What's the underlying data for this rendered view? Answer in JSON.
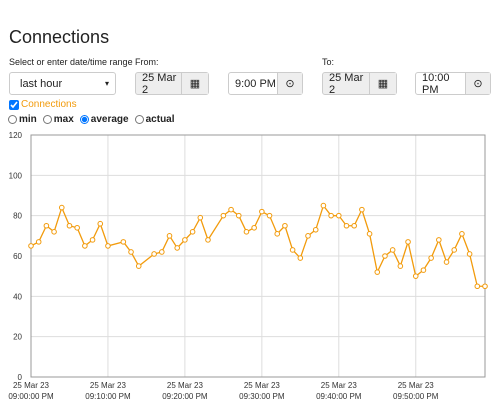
{
  "header": {
    "title": "Connections"
  },
  "range": {
    "label": "Select or enter date/time range",
    "selected": "last hour"
  },
  "from": {
    "label": "From:",
    "date": "25 Mar 2",
    "time": "9:00 PM"
  },
  "to": {
    "label": "To:",
    "date": "25 Mar 2",
    "time": "10:00 PM"
  },
  "series_toggle": {
    "label": "Connections",
    "checked": true
  },
  "aggregation": {
    "options": [
      "min",
      "max",
      "average",
      "actual"
    ],
    "selected": 2
  },
  "chart_data": {
    "type": "line",
    "color": "#f29b0c",
    "grid": true,
    "x": [
      "09:00:00 PM",
      "09:01:00 PM",
      "09:02:00 PM",
      "09:03:00 PM",
      "09:04:00 PM",
      "09:05:00 PM",
      "09:06:00 PM",
      "09:07:00 PM",
      "09:08:00 PM",
      "09:09:00 PM",
      "09:10:00 PM",
      "09:12:00 PM",
      "09:13:00 PM",
      "09:14:00 PM",
      "09:16:00 PM",
      "09:17:00 PM",
      "09:18:00 PM",
      "09:19:00 PM",
      "09:20:00 PM",
      "09:21:00 PM",
      "09:22:00 PM",
      "09:23:00 PM",
      "09:25:00 PM",
      "09:26:00 PM",
      "09:27:00 PM",
      "09:28:00 PM",
      "09:29:00 PM",
      "09:30:00 PM",
      "09:31:00 PM",
      "09:32:00 PM",
      "09:33:00 PM",
      "09:34:00 PM",
      "09:35:00 PM",
      "09:36:00 PM",
      "09:37:00 PM",
      "09:38:00 PM",
      "09:39:00 PM",
      "09:40:00 PM",
      "09:41:00 PM",
      "09:42:00 PM",
      "09:43:00 PM",
      "09:44:00 PM",
      "09:45:00 PM",
      "09:46:00 PM",
      "09:47:00 PM",
      "09:48:00 PM",
      "09:49:00 PM",
      "09:50:00 PM",
      "09:51:00 PM",
      "09:52:00 PM",
      "09:53:00 PM",
      "09:54:00 PM",
      "09:55:00 PM",
      "09:56:00 PM",
      "09:57:00 PM",
      "09:58:00 PM",
      "09:59:00 PM"
    ],
    "values": [
      65,
      67,
      75,
      72,
      84,
      75,
      74,
      65,
      68,
      76,
      65,
      67,
      62,
      55,
      61,
      62,
      70,
      64,
      68,
      72,
      79,
      68,
      80,
      83,
      80,
      72,
      74,
      82,
      80,
      71,
      75,
      63,
      59,
      70,
      73,
      85,
      80,
      80,
      75,
      75,
      83,
      71,
      52,
      60,
      63,
      55,
      67,
      50,
      53,
      59,
      68,
      57,
      63,
      71,
      61,
      45,
      45
    ],
    "xlim": [
      "09:00:00 PM",
      "09:59:00 PM"
    ],
    "xticks": [
      {
        "value": "09:00:00 PM",
        "label": [
          "25 Mar 23",
          "09:00:00 PM"
        ]
      },
      {
        "value": "09:10:00 PM",
        "label": [
          "25 Mar 23",
          "09:10:00 PM"
        ]
      },
      {
        "value": "09:20:00 PM",
        "label": [
          "25 Mar 23",
          "09:20:00 PM"
        ]
      },
      {
        "value": "09:30:00 PM",
        "label": [
          "25 Mar 23",
          "09:30:00 PM"
        ]
      },
      {
        "value": "09:40:00 PM",
        "label": [
          "25 Mar 23",
          "09:40:00 PM"
        ]
      },
      {
        "value": "09:50:00 PM",
        "label": [
          "25 Mar 23",
          "09:50:00 PM"
        ]
      }
    ],
    "ylim": [
      0,
      120
    ],
    "yticks": [
      0,
      20,
      40,
      60,
      80,
      100,
      120
    ]
  }
}
